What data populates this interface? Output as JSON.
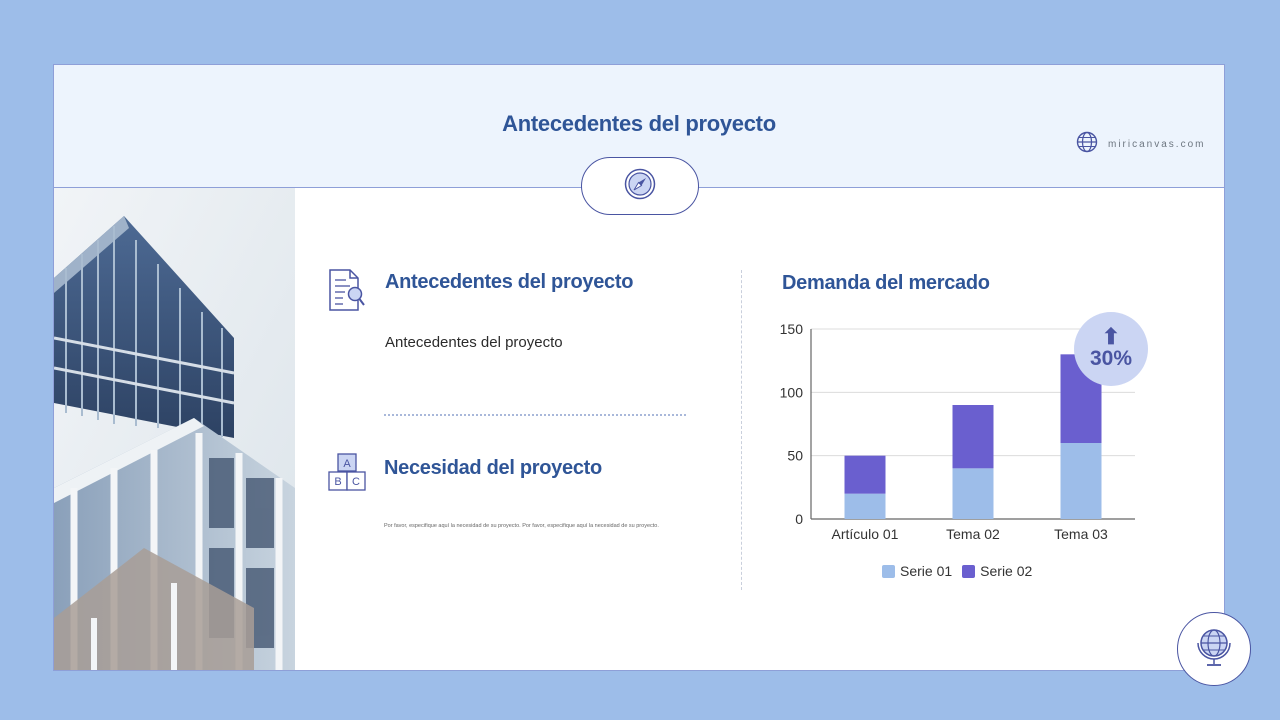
{
  "header": {
    "title": "Antecedentes del proyecto",
    "brand": "miricanvas.com"
  },
  "left": {
    "section1": {
      "title": "Antecedentes del proyecto",
      "body": "Antecedentes del proyecto"
    },
    "section2": {
      "title": "Necesidad del proyecto",
      "body": "Por favor, especifique aquí la necesidad de su proyecto. Por favor, especifique aquí la necesidad de su proyecto.",
      "icon_letters": [
        "A",
        "B",
        "C"
      ]
    }
  },
  "right": {
    "title": "Demanda del mercado",
    "badge": {
      "arrow": "⬆",
      "text": "30%"
    }
  },
  "colors": {
    "accent": "#2f5597",
    "serie01": "#9dbde9",
    "serie02": "#6a5fcf",
    "border": "#4a55a2"
  },
  "chart_data": {
    "type": "bar",
    "stacked": true,
    "categories": [
      "Artículo 01",
      "Tema 02",
      "Tema 03"
    ],
    "series": [
      {
        "name": "Serie 01",
        "values": [
          20,
          40,
          60
        ]
      },
      {
        "name": "Serie 02",
        "values": [
          30,
          50,
          70
        ]
      }
    ],
    "ylim": [
      0,
      150
    ],
    "yticks": [
      "0",
      "50",
      "100",
      "150"
    ],
    "grid": true,
    "legend": "bottom"
  }
}
